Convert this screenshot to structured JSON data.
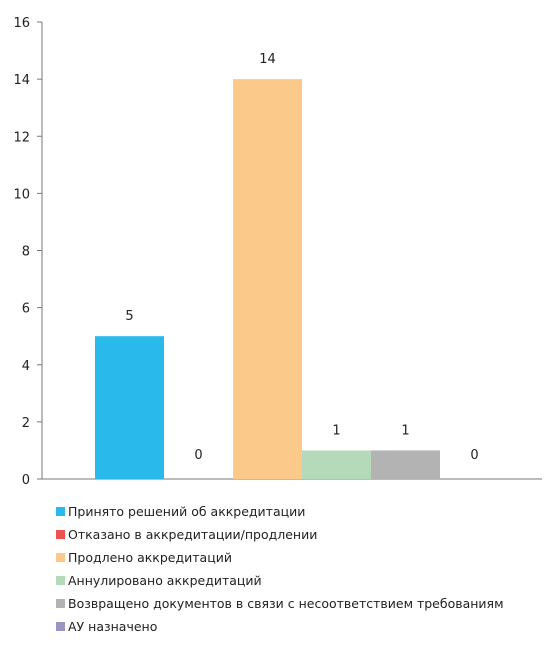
{
  "chart_data": {
    "type": "bar",
    "ylim": [
      0,
      16
    ],
    "yticks": [
      0,
      2,
      4,
      6,
      8,
      10,
      12,
      14,
      16
    ],
    "grid": false,
    "legend_position": "bottom",
    "series": [
      {
        "name": "Принято решений об аккредитации",
        "value": 5,
        "label": "5",
        "color": "#29b9ea"
      },
      {
        "name": "Отказано в аккредитации/продлении",
        "value": 0,
        "label": "0",
        "color": "#ef5350"
      },
      {
        "name": "Продлено аккредитаций",
        "value": 14,
        "label": "14",
        "color": "#fbc98a"
      },
      {
        "name": "Аннулировано аккредитаций",
        "value": 1,
        "label": "1",
        "color": "#b5dab9"
      },
      {
        "name": "Возвращено документов в связи с несоответствием требованиям",
        "value": 1,
        "label": "1",
        "color": "#b3b3b3"
      },
      {
        "name": "АУ назначено",
        "value": 0,
        "label": "0",
        "color": "#9e94c2"
      }
    ]
  }
}
